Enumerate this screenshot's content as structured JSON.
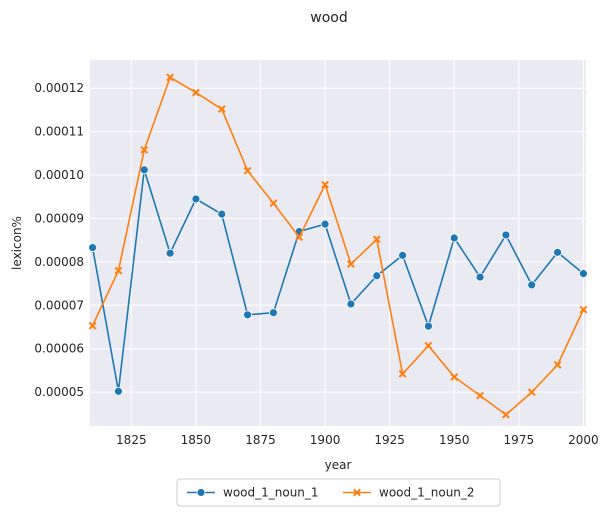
{
  "chart_data": {
    "type": "line",
    "title": "wood",
    "xlabel": "year",
    "ylabel": "lexicon%",
    "xlim": [
      1809,
      2001
    ],
    "ylim": [
      4.22e-05,
      0.0001265
    ],
    "xticks": [
      1825,
      1850,
      1875,
      1900,
      1925,
      1950,
      1975,
      2000
    ],
    "yticks": [
      5e-05,
      6e-05,
      7e-05,
      8e-05,
      9e-05,
      0.0001,
      0.00011,
      0.00012
    ],
    "ytick_labels": [
      "0.00005",
      "0.00006",
      "0.00007",
      "0.00008",
      "0.00009",
      "0.00010",
      "0.00011",
      "0.00012"
    ],
    "grid": true,
    "legend_position": "bottom-center",
    "x": [
      1810,
      1820,
      1830,
      1840,
      1850,
      1860,
      1870,
      1880,
      1890,
      1900,
      1910,
      1920,
      1930,
      1940,
      1950,
      1960,
      1970,
      1980,
      1990,
      2000
    ],
    "series": [
      {
        "name": "wood_1_noun_1",
        "color": "#1f77b4",
        "marker": "circle",
        "values": [
          8.33e-05,
          5.02e-05,
          0.0001012,
          8.2e-05,
          9.45e-05,
          9.1e-05,
          6.78e-05,
          6.83e-05,
          8.7e-05,
          8.87e-05,
          7.03e-05,
          7.68e-05,
          8.15e-05,
          6.52e-05,
          8.55e-05,
          7.65e-05,
          8.62e-05,
          7.47e-05,
          8.22e-05,
          7.73e-05
        ]
      },
      {
        "name": "wood_1_noun_2",
        "color": "#ff7f0e",
        "marker": "x",
        "values": [
          6.53e-05,
          7.8e-05,
          0.0001058,
          0.0001225,
          0.000119,
          0.0001152,
          0.000101,
          9.35e-05,
          8.57e-05,
          9.78e-05,
          7.95e-05,
          8.52e-05,
          5.42e-05,
          6.07e-05,
          5.35e-05,
          4.92e-05,
          4.48e-05,
          5e-05,
          5.63e-05,
          6.9e-05
        ]
      }
    ]
  }
}
